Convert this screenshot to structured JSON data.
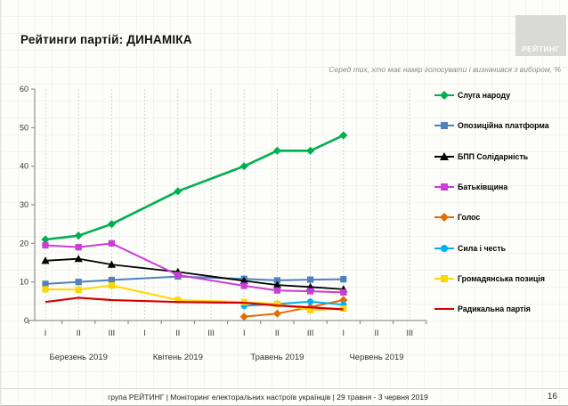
{
  "slide": {
    "title": "Рейтинги партій: ДИНАМІКА",
    "subtitle": "Серед тих, хто має намір голосувати і визначився з вибором, %",
    "logo_text": "РЕЙТИНГ",
    "footer": "група РЕЙТИНГ | Моніторинг електоральних настроїв українців  | 29 травня - 3 червня 2019",
    "page_number": "16"
  },
  "chart_data": {
    "type": "line",
    "title": "Рейтинги партій: ДИНАМІКА",
    "ylabel": "",
    "xlabel": "",
    "ylim": [
      0,
      60
    ],
    "y_ticks": [
      0,
      10,
      20,
      30,
      40,
      50,
      60
    ],
    "grid": "vertical-dashed",
    "legend_position": "right",
    "x_slots": [
      "I",
      "II",
      "III",
      "I",
      "II",
      "III",
      "I",
      "II",
      "III",
      "I",
      "II",
      "III"
    ],
    "month_groups": [
      {
        "label": "Березень 2019",
        "center_index": 1
      },
      {
        "label": "Квітень 2019",
        "center_index": 4
      },
      {
        "label": "Травень 2019",
        "center_index": 7
      },
      {
        "label": "Червень 2019",
        "center_index": 10
      }
    ],
    "series": [
      {
        "name": "Слуга народу",
        "color": "#00b050",
        "marker": "diamond",
        "line_width": 2.6,
        "x_index": [
          0,
          1,
          2,
          4,
          6,
          7,
          8,
          9
        ],
        "values": [
          21,
          22,
          25,
          33.5,
          40,
          44,
          44,
          48
        ]
      },
      {
        "name": "Опозиційна платформа",
        "color": "#4f81bd",
        "marker": "square",
        "line_width": 2.0,
        "x_index": [
          0,
          1,
          2,
          4,
          6,
          7,
          8,
          9
        ],
        "values": [
          9.5,
          10,
          10.5,
          11.4,
          10.8,
          10.4,
          10.6,
          10.7
        ]
      },
      {
        "name": "БПП Солідарність",
        "color": "#000000",
        "marker": "triangle",
        "line_width": 1.8,
        "x_index": [
          0,
          1,
          2,
          4,
          6,
          7,
          8,
          9
        ],
        "values": [
          15.5,
          16,
          14.5,
          12.6,
          10.3,
          9.2,
          8.7,
          8.1
        ]
      },
      {
        "name": "Батьківщина",
        "color": "#c93ed6",
        "marker": "square",
        "line_width": 2.0,
        "x_index": [
          0,
          1,
          2,
          4,
          6,
          7,
          8,
          9
        ],
        "values": [
          19.5,
          19,
          20,
          11.8,
          9,
          7.8,
          7.6,
          7.3
        ]
      },
      {
        "name": "Голос",
        "color": "#e36c09",
        "marker": "diamond",
        "line_width": 2.0,
        "x_index": [
          6,
          7,
          8,
          9
        ],
        "values": [
          1,
          1.8,
          3.5,
          5.3
        ]
      },
      {
        "name": "Сила і честь",
        "color": "#00b0f0",
        "marker": "circle",
        "line_width": 2.0,
        "x_index": [
          6,
          7,
          8,
          9
        ],
        "values": [
          3.8,
          4.3,
          4.9,
          4.1
        ]
      },
      {
        "name": "Громадянська позиція",
        "color": "#ffd700",
        "marker": "square",
        "line_width": 2.0,
        "x_index": [
          0,
          1,
          2,
          4,
          6,
          7,
          8,
          9
        ],
        "values": [
          8.1,
          8,
          9.1,
          5.3,
          4.8,
          4.3,
          2.7,
          3.1
        ]
      },
      {
        "name": "Радикальна партія",
        "color": "#d40000",
        "marker": "none",
        "line_width": 2.2,
        "x_index": [
          0,
          1,
          2,
          4,
          6,
          7,
          8,
          9
        ],
        "values": [
          4.8,
          5.9,
          5.3,
          4.8,
          4.6,
          3.9,
          3.4,
          2.9
        ]
      }
    ]
  }
}
